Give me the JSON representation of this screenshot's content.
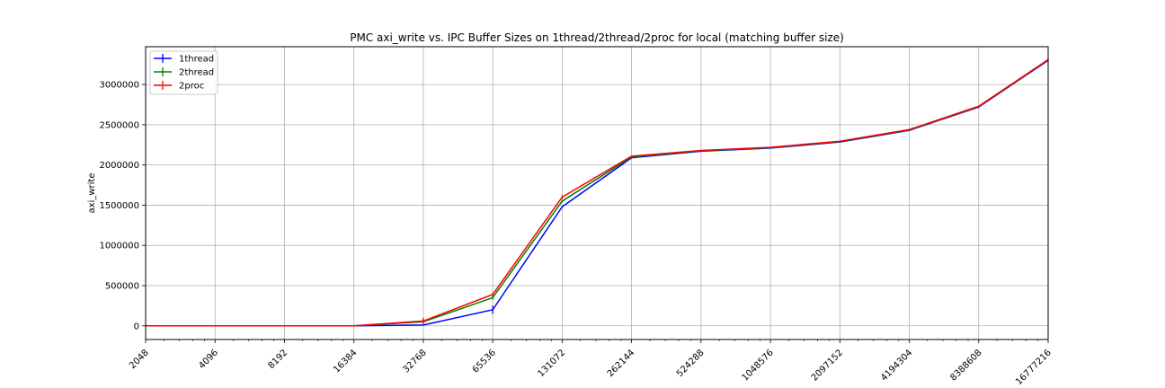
{
  "chart_data": {
    "type": "line",
    "title": "PMC axi_write vs. IPC Buffer Sizes on 1thread/2thread/2proc for local (matching buffer size)",
    "xlabel": "",
    "ylabel": "axi_write",
    "x_scale": "log2",
    "x": [
      2048,
      4096,
      8192,
      16384,
      32768,
      65536,
      131072,
      262144,
      524288,
      1048576,
      2097152,
      4194304,
      8388608,
      16777216
    ],
    "x_tick_labels": [
      "2048",
      "4096",
      "8192",
      "16384",
      "32768",
      "65536",
      "131072",
      "262144",
      "524288",
      "1048576",
      "2097152",
      "4194304",
      "8388608",
      "16777216"
    ],
    "y_ticks": [
      0,
      500000,
      1000000,
      1500000,
      2000000,
      2500000,
      3000000
    ],
    "y_tick_labels": [
      "0",
      "500000",
      "1000000",
      "1500000",
      "2000000",
      "2500000",
      "3000000"
    ],
    "ylim": [
      -170000,
      3470000
    ],
    "grid": true,
    "legend_position": "upper-left",
    "series": [
      {
        "name": "1thread",
        "color": "#0000ff",
        "values": [
          0,
          0,
          0,
          0,
          10000,
          200000,
          1480000,
          2090000,
          2170000,
          2210000,
          2285000,
          2430000,
          2720000,
          3300000
        ],
        "errors": [
          0,
          0,
          0,
          0,
          5000,
          50000,
          10000,
          5000,
          5000,
          5000,
          5000,
          5000,
          5000,
          5000
        ]
      },
      {
        "name": "2thread",
        "color": "#008000",
        "values": [
          0,
          0,
          0,
          0,
          50000,
          350000,
          1550000,
          2100000,
          2175000,
          2215000,
          2290000,
          2435000,
          2725000,
          3305000
        ],
        "errors": [
          0,
          0,
          0,
          0,
          15000,
          25000,
          15000,
          5000,
          5000,
          5000,
          5000,
          5000,
          5000,
          5000
        ]
      },
      {
        "name": "2proc",
        "color": "#ff0000",
        "values": [
          0,
          0,
          0,
          0,
          60000,
          390000,
          1600000,
          2110000,
          2180000,
          2220000,
          2295000,
          2440000,
          2730000,
          3310000
        ],
        "errors": [
          0,
          0,
          0,
          0,
          40000,
          20000,
          20000,
          5000,
          5000,
          5000,
          5000,
          5000,
          5000,
          5000
        ]
      }
    ]
  }
}
